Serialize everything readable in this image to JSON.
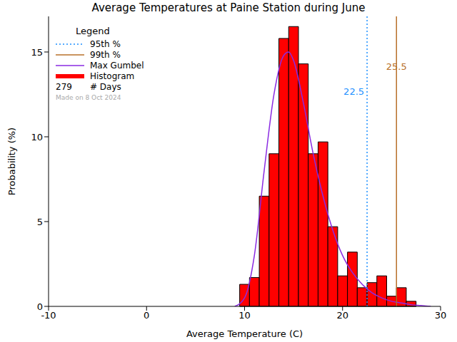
{
  "chart_data": {
    "type": "histogram",
    "title": "Average Temperatures at Paine Station during June",
    "x_label": "Average Temperature (C)",
    "y_label": "Probability (%)",
    "xlim": [
      -10,
      30
    ],
    "xticks": [
      -10,
      0,
      10,
      20,
      30
    ],
    "ylim": [
      0,
      17.1
    ],
    "yticks": [
      0,
      5,
      10,
      15
    ],
    "legend": "upper left",
    "legend_title": "Legend",
    "series": [
      {
        "name": "Histogram",
        "type": "histogram",
        "color": "#ff0000",
        "bins": [
          9.5,
          10.5,
          11.5,
          12.5,
          13.5,
          14.5,
          15.5,
          16.5,
          17.5,
          18.5,
          19.5,
          20.5,
          21.5,
          22.5,
          23.5,
          24.5,
          25.5,
          26.5,
          27.5
        ],
        "values": [
          1.3,
          1.7,
          6.5,
          9.0,
          15.8,
          16.5,
          14.3,
          9.0,
          9.7,
          4.7,
          1.8,
          3.2,
          1.1,
          1.4,
          1.8,
          0.6,
          1.1,
          0.3
        ]
      },
      {
        "name": "Max Gumbel",
        "type": "line",
        "color": "#8a2be2",
        "x": [
          9,
          10,
          11,
          12,
          13,
          14,
          14.5,
          15,
          16,
          17,
          18,
          19,
          20,
          21,
          22,
          23,
          24,
          25,
          26,
          27,
          28,
          29
        ],
        "values": [
          0,
          0.5,
          3,
          8,
          12.5,
          14.8,
          15,
          14.5,
          12,
          9,
          6.5,
          4.5,
          3,
          2,
          1.3,
          0.8,
          0.5,
          0.3,
          0.2,
          0.1,
          0.05,
          0
        ]
      }
    ],
    "reference_lines": [
      {
        "name": "95th %",
        "value": 22.5,
        "color": "#1e90ff",
        "line_style": "dotted"
      },
      {
        "name": "99th %",
        "value": 25.5,
        "color": "#b8702a",
        "line_style": "solid"
      }
    ],
    "days": 279,
    "days_label": "# Days",
    "note": "Made on 8 Oct 2024"
  }
}
